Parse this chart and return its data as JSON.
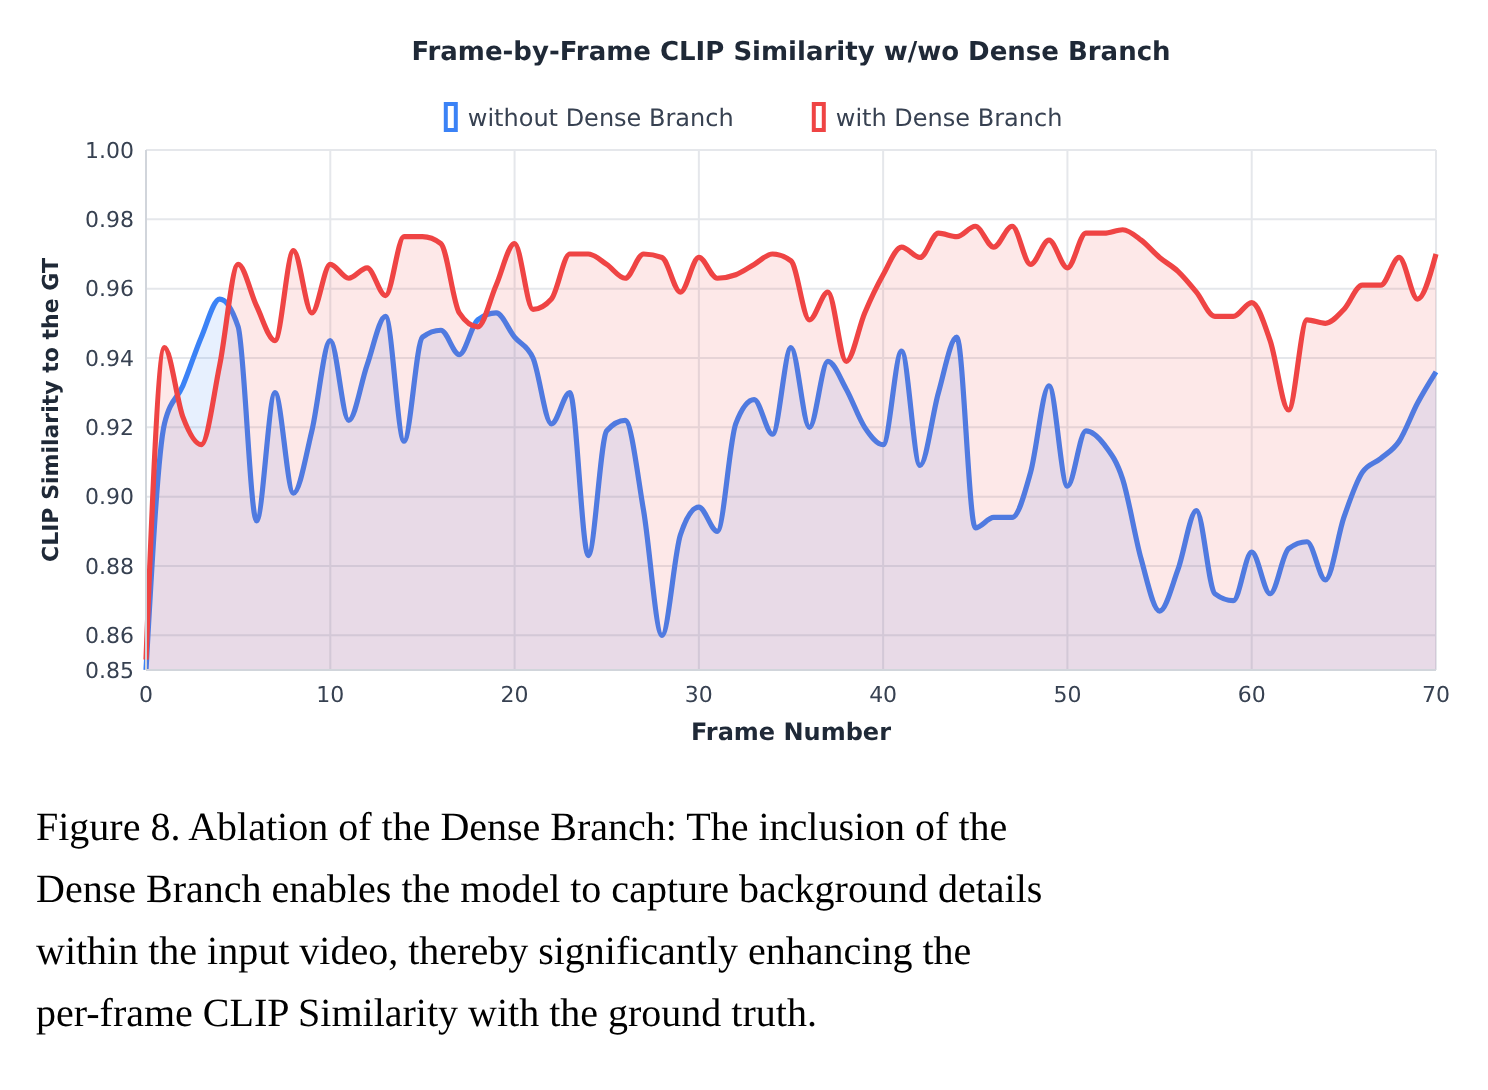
{
  "chart_data": {
    "type": "area",
    "title": "Frame-by-Frame CLIP Similarity w/wo Dense Branch",
    "xlabel": "Frame Number",
    "ylabel": "CLIP Similarity to the GT",
    "x": [
      0,
      1,
      2,
      3,
      4,
      5,
      6,
      7,
      8,
      9,
      10,
      11,
      12,
      13,
      14,
      15,
      16,
      17,
      18,
      19,
      20,
      21,
      22,
      23,
      24,
      25,
      26,
      27,
      28,
      29,
      30,
      31,
      32,
      33,
      34,
      35,
      36,
      37,
      38,
      39,
      40,
      41,
      42,
      43,
      44,
      45,
      46,
      47,
      48,
      49,
      50,
      51,
      52,
      53,
      54,
      55,
      56,
      57,
      58,
      59,
      60,
      61,
      62,
      63,
      64,
      65,
      66,
      67,
      68,
      69,
      70
    ],
    "series": [
      {
        "name": "without Dense Branch",
        "color": "#3b82f6",
        "values": [
          0.85,
          0.921,
          0.932,
          0.946,
          0.957,
          0.949,
          0.893,
          0.93,
          0.901,
          0.919,
          0.945,
          0.922,
          0.938,
          0.952,
          0.916,
          0.946,
          0.948,
          0.941,
          0.951,
          0.953,
          0.946,
          0.94,
          0.921,
          0.93,
          0.883,
          0.919,
          0.922,
          0.896,
          0.86,
          0.889,
          0.897,
          0.89,
          0.921,
          0.928,
          0.918,
          0.943,
          0.92,
          0.939,
          0.931,
          0.92,
          0.915,
          0.942,
          0.909,
          0.93,
          0.946,
          0.891,
          0.894,
          0.894,
          0.907,
          0.932,
          0.903,
          0.919,
          0.915,
          0.905,
          0.882,
          0.867,
          0.879,
          0.896,
          0.872,
          0.87,
          0.884,
          0.872,
          0.885,
          0.887,
          0.876,
          0.894,
          0.907,
          0.911,
          0.916,
          0.927,
          0.936
        ]
      },
      {
        "name": "with Dense Branch",
        "color": "#ef4444",
        "values": [
          0.853,
          0.943,
          0.923,
          0.915,
          0.938,
          0.967,
          0.955,
          0.945,
          0.971,
          0.953,
          0.967,
          0.963,
          0.966,
          0.958,
          0.975,
          0.975,
          0.973,
          0.953,
          0.949,
          0.961,
          0.973,
          0.954,
          0.957,
          0.97,
          0.97,
          0.967,
          0.963,
          0.97,
          0.969,
          0.959,
          0.969,
          0.963,
          0.964,
          0.967,
          0.97,
          0.968,
          0.951,
          0.959,
          0.939,
          0.953,
          0.964,
          0.972,
          0.969,
          0.976,
          0.975,
          0.978,
          0.972,
          0.978,
          0.967,
          0.974,
          0.966,
          0.976,
          0.976,
          0.977,
          0.974,
          0.969,
          0.965,
          0.959,
          0.952,
          0.952,
          0.956,
          0.945,
          0.925,
          0.951,
          0.95,
          0.954,
          0.961,
          0.961,
          0.969,
          0.957,
          0.97
        ]
      }
    ],
    "xlim": [
      0,
      70
    ],
    "xticks": [
      0,
      10,
      20,
      30,
      40,
      50,
      60,
      70
    ],
    "ylim": [
      0.85,
      1.0
    ],
    "yticks": [
      {
        "value": 0.85,
        "label": "0.85"
      },
      {
        "value": 0.86,
        "label": "0.86"
      },
      {
        "value": 0.88,
        "label": "0.88"
      },
      {
        "value": 0.9,
        "label": "0.90"
      },
      {
        "value": 0.92,
        "label": "0.92"
      },
      {
        "value": 0.94,
        "label": "0.94"
      },
      {
        "value": 0.96,
        "label": "0.96"
      },
      {
        "value": 0.98,
        "label": "0.98"
      },
      {
        "value": 1.0,
        "label": "1.00"
      }
    ],
    "grid": true,
    "legend": "top",
    "line_style": "solid",
    "annotations": [
      "Figure 8. Ablation of the Dense Branch: The inclusion of the Dense Branch enables the model to capture background details within the input video, thereby significantly enhancing the per-frame CLIP Similarity with the ground truth."
    ]
  }
}
